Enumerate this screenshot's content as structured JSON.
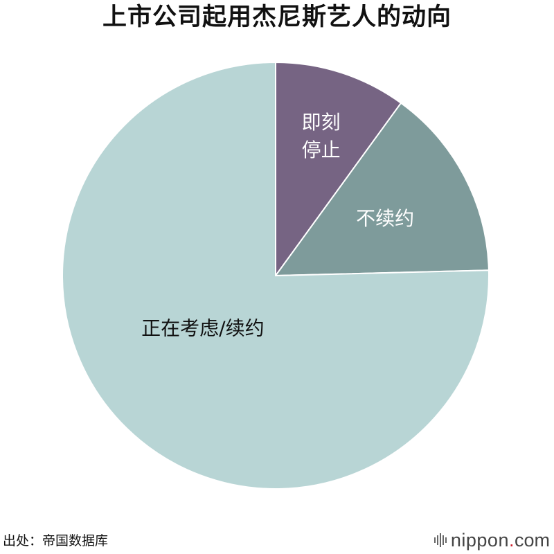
{
  "chart_data": {
    "type": "pie",
    "title": "上市公司起用杰尼斯艺人的动向",
    "slices": [
      {
        "label": "即刻停止",
        "lines": [
          "即刻",
          "停止"
        ],
        "value": 10,
        "color": "#766483",
        "label_color": "#ffffff"
      },
      {
        "label": "不续约",
        "lines": [
          "不续约"
        ],
        "value": 14.6,
        "color": "#7e9b9b",
        "label_color": "#ffffff"
      },
      {
        "label": "正在考虑/续约",
        "lines": [
          "正在考虑/续约"
        ],
        "value": 75.4,
        "color": "#b8d5d5",
        "label_color": "#111111"
      }
    ]
  },
  "footer": {
    "source": "出处：帝国数据库",
    "brand_name": "nippon",
    "brand_dot": ".",
    "brand_tld": "com"
  }
}
